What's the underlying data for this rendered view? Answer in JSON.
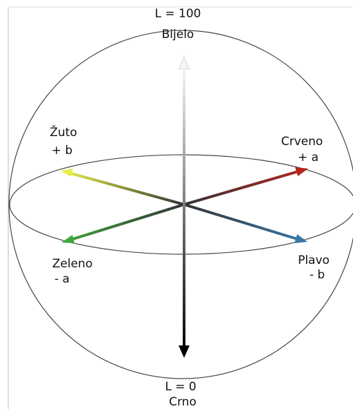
{
  "top_pole": {
    "value": "L = 100",
    "name": "Bijelo"
  },
  "plus_b": {
    "name": "Žuto",
    "axis": "+ b"
  },
  "plus_a": {
    "name": "Crveno",
    "axis": "+ a"
  },
  "minus_a": {
    "name": "Zeleno",
    "axis": "- a"
  },
  "minus_b": {
    "name": "Plavo",
    "axis": "- b"
  },
  "bottom_pole": {
    "value": "L = 0",
    "name": "Crno"
  }
}
